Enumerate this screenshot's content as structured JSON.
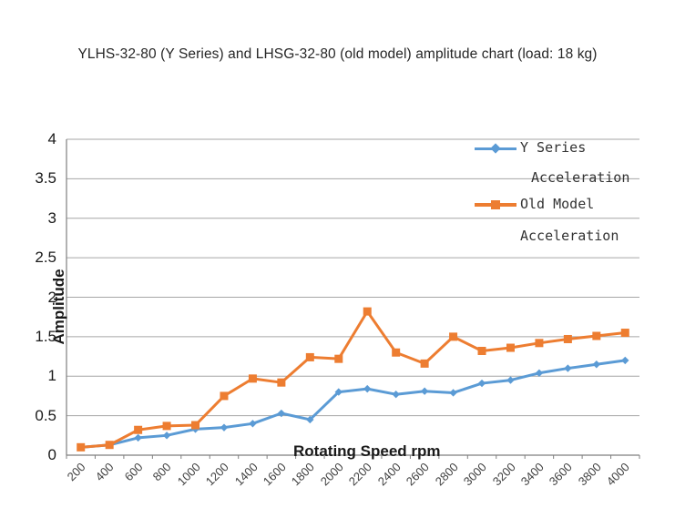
{
  "title": "YLHS-32-80 (Y Series) and LHSG-32-80 (old model) amplitude chart (load: 18 kg)",
  "chart_data": {
    "type": "line",
    "xlabel": "Rotating Speed rpm",
    "ylabel": "Amplitude",
    "ylim": [
      0,
      4
    ],
    "ytick_step": 0.5,
    "grid": "horizontal",
    "legend_position": "top-right",
    "y_tick_labels": [
      "0",
      "0.5",
      "1",
      "1.5",
      "2",
      "2.5",
      "3",
      "3.5",
      "4"
    ],
    "categories": [
      200,
      400,
      600,
      800,
      1000,
      1200,
      1400,
      1600,
      1800,
      2000,
      2200,
      2400,
      2600,
      2800,
      3000,
      3200,
      3400,
      3600,
      3800,
      4000
    ],
    "x_tick_labels": [
      "200",
      "400",
      "600",
      "800",
      "1000",
      "1200",
      "1400",
      "1600",
      "1800",
      "2000",
      "2200",
      "2400",
      "2600",
      "2800",
      "3000",
      "3200",
      "3400",
      "3600",
      "3800",
      "4000"
    ],
    "series": [
      {
        "name": "Y Series Acceleration",
        "legend_lines": [
          "Y Series",
          "Acceleration"
        ],
        "color": "#5B9BD5",
        "marker": "diamond",
        "values": [
          0.1,
          0.13,
          0.22,
          0.25,
          0.33,
          0.35,
          0.4,
          0.53,
          0.45,
          0.8,
          0.84,
          0.77,
          0.81,
          0.79,
          0.91,
          0.95,
          1.04,
          1.1,
          1.15,
          1.2
        ]
      },
      {
        "name": "Old Model Acceleration",
        "legend_lines": [
          "Old Model",
          "Acceleration"
        ],
        "color": "#ED7D31",
        "marker": "square",
        "values": [
          0.1,
          0.13,
          0.32,
          0.37,
          0.38,
          0.75,
          0.97,
          0.92,
          1.24,
          1.22,
          1.82,
          1.3,
          1.16,
          1.5,
          1.32,
          1.36,
          1.42,
          1.47,
          1.51,
          1.55
        ]
      }
    ]
  },
  "colors": {
    "background": "#ffffff",
    "gridline": "#a6a6a6",
    "axis": "#7f7f7f",
    "tick_text": "#404040",
    "title_text": "#262626"
  }
}
